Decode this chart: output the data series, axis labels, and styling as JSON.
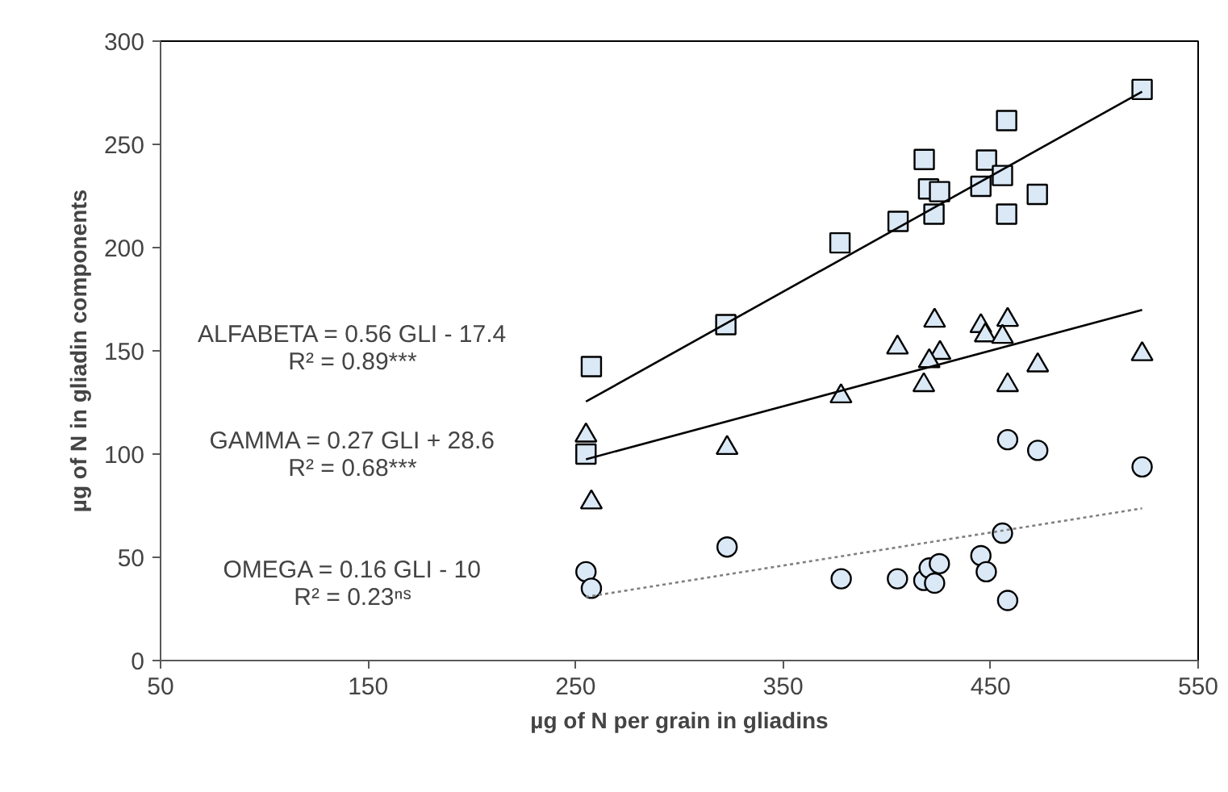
{
  "chart_data": {
    "type": "scatter",
    "xlabel": "µg of N per grain in gliadins",
    "ylabel": "µg of N in gliadin components",
    "xlim": [
      50,
      550
    ],
    "xticks": [
      50,
      150,
      250,
      350,
      450,
      550
    ],
    "ylim": [
      0,
      300
    ],
    "yticks": [
      0,
      50,
      100,
      150,
      200,
      250,
      300
    ],
    "grid": false,
    "series": [
      {
        "marker": "square",
        "color": "#dbe9f6",
        "x": [
          523,
          457.7,
          418,
          448,
          455.7,
          420.1,
          425.4,
          445.3,
          472.5,
          422.7,
          457.7,
          405.4,
          377.4,
          322.4,
          257.6,
          255
        ],
        "values": [
          276.6,
          261.5,
          242.7,
          242.4,
          234.9,
          228.4,
          227.1,
          229.7,
          225.8,
          216.2,
          216.2,
          212.7,
          202.3,
          162.7,
          142.4,
          100
        ]
      },
      {
        "marker": "triangle",
        "color": "#dbe9f6",
        "x": [
          255,
          257.6,
          323,
          377.9,
          405.1,
          423,
          445.3,
          458.2,
          447.4,
          455.7,
          425.6,
          420.4,
          417.8,
          458.2,
          472.7,
          523
        ],
        "values": [
          109,
          76.6,
          103,
          128,
          151.6,
          164.6,
          162,
          165,
          157.5,
          156.8,
          149,
          145,
          133.4,
          133.4,
          143,
          148.4
        ]
      },
      {
        "marker": "circle",
        "color": "#dbe9f6",
        "x": [
          255,
          257.6,
          323,
          378,
          405.1,
          417.8,
          420.4,
          425.3,
          423,
          445.3,
          447.9,
          455.7,
          458.2,
          458.2,
          472.7,
          523
        ],
        "values": [
          43,
          35,
          55,
          39.6,
          39.6,
          38.8,
          44.8,
          46.9,
          37.5,
          50.8,
          43,
          61.7,
          29.1,
          107,
          101.8,
          93.8
        ]
      },
      {
        "type": "line",
        "line_style": "solid",
        "color": "#000000",
        "x": [
          255,
          523
        ],
        "values": [
          125.4,
          275.5
        ]
      },
      {
        "type": "line",
        "line_style": "solid",
        "color": "#000000",
        "x": [
          255,
          523
        ],
        "values": [
          97.5,
          169.8
        ]
      },
      {
        "type": "line",
        "line_style": "dotted",
        "color": "#808080",
        "x": [
          255,
          523
        ],
        "values": [
          30.8,
          73.7
        ]
      }
    ],
    "annotations": [
      "ALFABETA = 0.56 GLI - 17.4",
      "R² = 0.89***",
      "GAMMA = 0.27 GLI + 28.6",
      "R² = 0.68***",
      "OMEGA = 0.16 GLI - 10",
      "R² = 0.23ⁿˢ"
    ]
  }
}
